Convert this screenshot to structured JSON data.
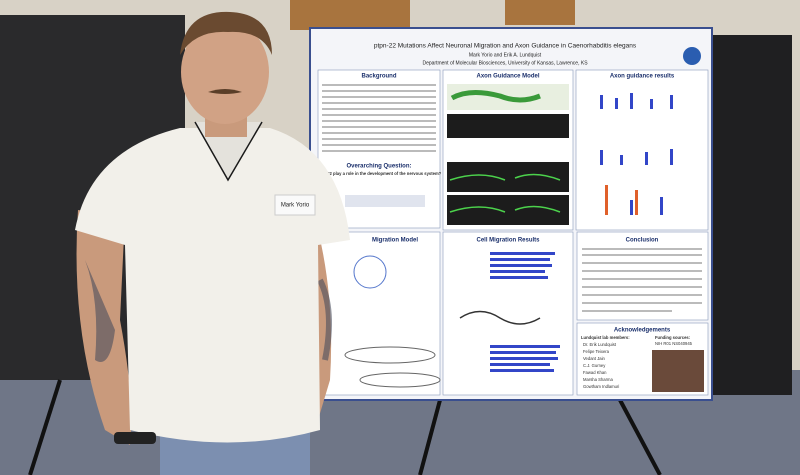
{
  "poster": {
    "title": "ptpn-22 Mutations Affect Neuronal Migration and Axon Guidance in Caenorhabditis elegans",
    "authors": "Mark Yorio and Erik A. Lundquist",
    "affiliation": "Department of Molecular Biosciences, University of Kansas, Lawrence, KS",
    "sections": {
      "background": "Background",
      "question": "Overarching Question:",
      "question_text": "ptpn-22 play a role in the development of the nervous system?",
      "axon_model": "Axon Guidance Model",
      "axon_results": "Axon guidance results",
      "migration_model": "Migration Model",
      "migration_results": "Cell Migration Results",
      "conclusion": "Conclusion",
      "acknowledgements": "Acknowledgements"
    },
    "acknowledgements": {
      "lab_heading": "Lundquist lab members:",
      "members": [
        "Dr. Erik Lundquist",
        "Felipe Teixera",
        "Vedant Jain",
        "C.J. Gurney",
        "Fawad Khan",
        "Marsha Sharma",
        "Gowtham Indlamuri"
      ],
      "funding_heading": "Funding sources:",
      "funding": "NIH R01 NS040945"
    }
  },
  "name_tag": "Mark Yorio"
}
